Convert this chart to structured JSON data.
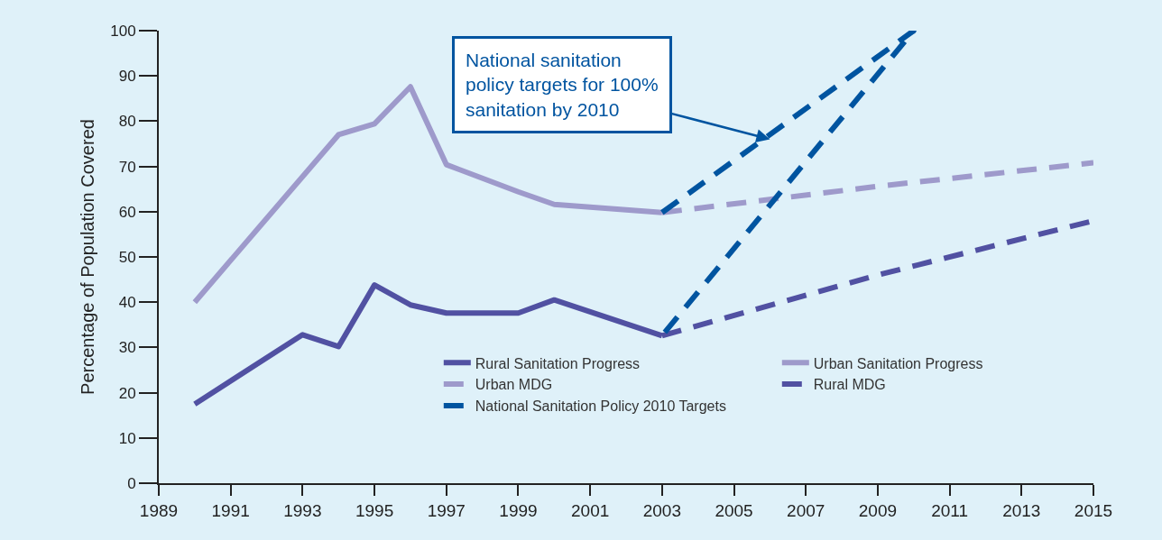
{
  "chart_data": {
    "type": "line",
    "ylabel": "Percentage of Population Covered",
    "xlim": [
      1989,
      2015
    ],
    "xticks": [
      1989,
      1991,
      1993,
      1995,
      1997,
      1999,
      2001,
      2003,
      2005,
      2007,
      2009,
      2011,
      2013,
      2015
    ],
    "ylim": [
      0,
      100
    ],
    "yticks": [
      0,
      10,
      20,
      30,
      40,
      50,
      60,
      70,
      80,
      90,
      100
    ],
    "grid": false,
    "legend": "bottom right",
    "marker": "none",
    "annotations": [
      {
        "text": "National sanitation\npolicy targets for 100%\nsanitation by 2010",
        "x": 2006,
        "y": 76
      }
    ],
    "series": [
      {
        "name": "Rural Sanitation Progress",
        "color": "#5151a2",
        "line_style": "solid",
        "x": [
          1990,
          1993,
          1994,
          1995,
          1996,
          1997,
          1999,
          2000,
          2003
        ],
        "values": [
          17.5,
          32.8,
          30.2,
          43.8,
          39.4,
          37.6,
          37.6,
          40.5,
          32.6
        ]
      },
      {
        "name": "Urban Sanitation Progress",
        "color": "#9e9acb",
        "line_style": "solid",
        "x": [
          1990,
          1994,
          1995,
          1996,
          1997,
          1999,
          2000,
          2003
        ],
        "values": [
          40,
          77,
          79.4,
          87.6,
          70.4,
          64.4,
          61.6,
          59.8
        ]
      },
      {
        "name": "Urban MDG",
        "color": "#9e9acb",
        "line_style": "dashed",
        "x": [
          2003,
          2009,
          2015
        ],
        "values": [
          59.8,
          65.6,
          70.8
        ]
      },
      {
        "name": "Rural MDG",
        "color": "#5151a2",
        "line_style": "dashed",
        "x": [
          2003,
          2009,
          2015
        ],
        "values": [
          32.6,
          46,
          58
        ]
      },
      {
        "name": "National Sanitation Policy 2010 Targets",
        "color": "#0054a0",
        "line_style": "dashed",
        "x": [
          2003,
          2010,
          2003
        ],
        "values": [
          59.8,
          100,
          32.6
        ]
      }
    ]
  }
}
